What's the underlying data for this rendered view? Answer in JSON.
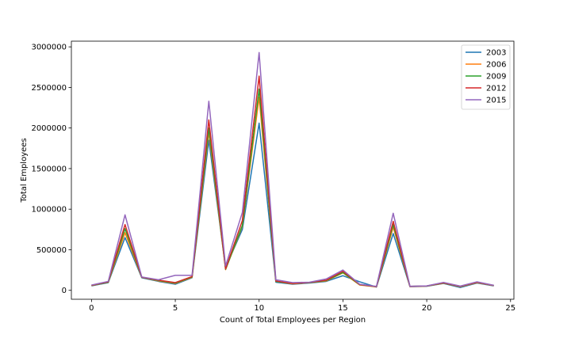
{
  "chart_data": {
    "type": "line",
    "title": "",
    "xlabel": "Count of Total Employees per Region",
    "ylabel": "Total Employees",
    "xlim": [
      -1.2,
      25.2
    ],
    "ylim": [
      -110000,
      3070000
    ],
    "xticks": [
      0,
      5,
      10,
      15,
      20,
      25
    ],
    "yticks": [
      0,
      500000,
      1000000,
      1500000,
      2000000,
      2500000,
      3000000
    ],
    "grid": false,
    "legend_position": "top-right",
    "x": [
      0,
      1,
      2,
      3,
      4,
      5,
      6,
      7,
      8,
      9,
      10,
      11,
      12,
      13,
      14,
      15,
      16,
      17,
      18,
      19,
      20,
      21,
      22,
      23,
      24
    ],
    "series": [
      {
        "name": "2003",
        "color": "#1f77b4",
        "values": [
          55000,
          95000,
          650000,
          155000,
          110000,
          75000,
          155000,
          1850000,
          280000,
          750000,
          2060000,
          100000,
          75000,
          90000,
          110000,
          180000,
          105000,
          40000,
          700000,
          45000,
          50000,
          85000,
          35000,
          90000,
          55000
        ]
      },
      {
        "name": "2006",
        "color": "#ff7f0e",
        "values": [
          58000,
          100000,
          710000,
          160000,
          115000,
          85000,
          160000,
          1950000,
          255000,
          790000,
          2380000,
          110000,
          80000,
          95000,
          115000,
          215000,
          65000,
          42000,
          780000,
          46000,
          52000,
          88000,
          45000,
          95000,
          58000
        ]
      },
      {
        "name": "2009",
        "color": "#2ca02c",
        "values": [
          60000,
          100000,
          760000,
          160000,
          120000,
          90000,
          165000,
          2000000,
          260000,
          800000,
          2480000,
          110000,
          85000,
          95000,
          120000,
          220000,
          70000,
          44000,
          810000,
          48000,
          53000,
          90000,
          48000,
          98000,
          60000
        ]
      },
      {
        "name": "2012",
        "color": "#d62728",
        "values": [
          62000,
          105000,
          810000,
          162000,
          125000,
          95000,
          170000,
          2100000,
          265000,
          860000,
          2640000,
          115000,
          85000,
          97000,
          125000,
          235000,
          72000,
          45000,
          850000,
          48000,
          54000,
          92000,
          50000,
          100000,
          60000
        ]
      },
      {
        "name": "2015",
        "color": "#9467bd",
        "values": [
          65000,
          110000,
          930000,
          165000,
          130000,
          185000,
          185000,
          2330000,
          300000,
          960000,
          2930000,
          130000,
          95000,
          100000,
          140000,
          250000,
          75000,
          48000,
          950000,
          50000,
          55000,
          98000,
          52000,
          105000,
          62000
        ]
      }
    ]
  }
}
